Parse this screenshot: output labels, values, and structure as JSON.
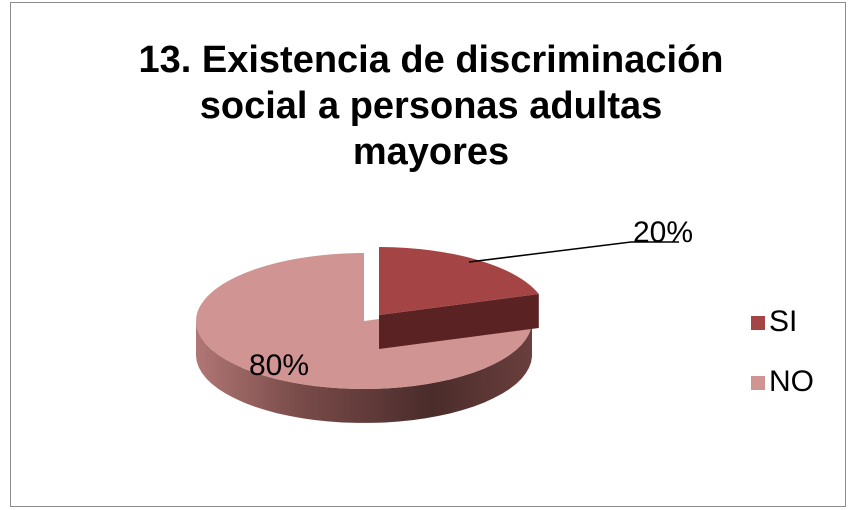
{
  "chart_data": {
    "type": "pie",
    "title_lines": [
      "13. Existencia de discriminación",
      "social a personas adultas",
      "mayores"
    ],
    "categories": [
      "SI",
      "NO"
    ],
    "values": [
      20,
      80
    ],
    "data_labels": [
      "20%",
      "80%"
    ],
    "colors": [
      "#a54445",
      "#d09493"
    ],
    "legend_position": "right",
    "style": "3d-exploded"
  }
}
